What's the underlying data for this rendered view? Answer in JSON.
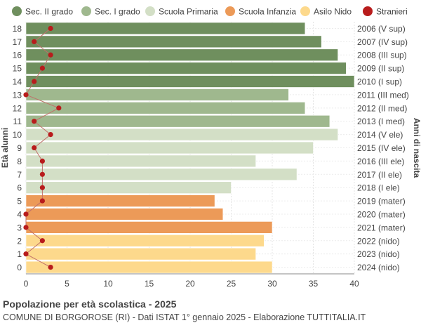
{
  "chart_data": {
    "type": "bar",
    "orientation": "horizontal",
    "ylabel_left": "Età alunni",
    "ylabel_right": "Anni di nascita",
    "xlim": [
      0,
      40
    ],
    "x_ticks": [
      0,
      5,
      10,
      15,
      20,
      25,
      30,
      35,
      40
    ],
    "grid": true,
    "legend_position": "top",
    "legend": [
      {
        "label": "Sec. II grado",
        "color": "#6f8f5e"
      },
      {
        "label": "Sec. I grado",
        "color": "#9fb88e"
      },
      {
        "label": "Scuola Primaria",
        "color": "#d3dfc6"
      },
      {
        "label": "Scuola Infanzia",
        "color": "#ec9a58"
      },
      {
        "label": "Asilo Nido",
        "color": "#fdd98c"
      },
      {
        "label": "Stranieri",
        "color": "#b81c1c"
      }
    ],
    "rows": [
      {
        "age": "18",
        "birth": "2006 (V sup)",
        "value": 34,
        "stranieri": 3,
        "group": 0
      },
      {
        "age": "17",
        "birth": "2007 (IV sup)",
        "value": 36,
        "stranieri": 1,
        "group": 0
      },
      {
        "age": "16",
        "birth": "2008 (III sup)",
        "value": 38,
        "stranieri": 3,
        "group": 0
      },
      {
        "age": "15",
        "birth": "2009 (II sup)",
        "value": 39,
        "stranieri": 2,
        "group": 0
      },
      {
        "age": "14",
        "birth": "2010 (I sup)",
        "value": 40,
        "stranieri": 1,
        "group": 0
      },
      {
        "age": "13",
        "birth": "2011 (III med)",
        "value": 32,
        "stranieri": 0,
        "group": 1
      },
      {
        "age": "12",
        "birth": "2012 (II med)",
        "value": 34,
        "stranieri": 4,
        "group": 1
      },
      {
        "age": "11",
        "birth": "2013 (I med)",
        "value": 37,
        "stranieri": 1,
        "group": 1
      },
      {
        "age": "10",
        "birth": "2014 (V ele)",
        "value": 38,
        "stranieri": 3,
        "group": 2
      },
      {
        "age": "9",
        "birth": "2015 (IV ele)",
        "value": 35,
        "stranieri": 1,
        "group": 2
      },
      {
        "age": "8",
        "birth": "2016 (III ele)",
        "value": 28,
        "stranieri": 2,
        "group": 2
      },
      {
        "age": "7",
        "birth": "2017 (II ele)",
        "value": 33,
        "stranieri": 2,
        "group": 2
      },
      {
        "age": "6",
        "birth": "2018 (I ele)",
        "value": 25,
        "stranieri": 2,
        "group": 2
      },
      {
        "age": "5",
        "birth": "2019 (mater)",
        "value": 23,
        "stranieri": 2,
        "group": 3
      },
      {
        "age": "4",
        "birth": "2020 (mater)",
        "value": 24,
        "stranieri": 0,
        "group": 3
      },
      {
        "age": "3",
        "birth": "2021 (mater)",
        "value": 30,
        "stranieri": 0,
        "group": 3
      },
      {
        "age": "2",
        "birth": "2022 (nido)",
        "value": 29,
        "stranieri": 2,
        "group": 4
      },
      {
        "age": "1",
        "birth": "2023 (nido)",
        "value": 28,
        "stranieri": 0,
        "group": 4
      },
      {
        "age": "0",
        "birth": "2024 (nido)",
        "value": 30,
        "stranieri": 3,
        "group": 4
      }
    ]
  },
  "footer": {
    "title": "Popolazione per età scolastica - 2025",
    "subtitle": "COMUNE DI BORGOROSE (RI) - Dati ISTAT 1° gennaio 2025 - Elaborazione TUTTITALIA.IT"
  }
}
